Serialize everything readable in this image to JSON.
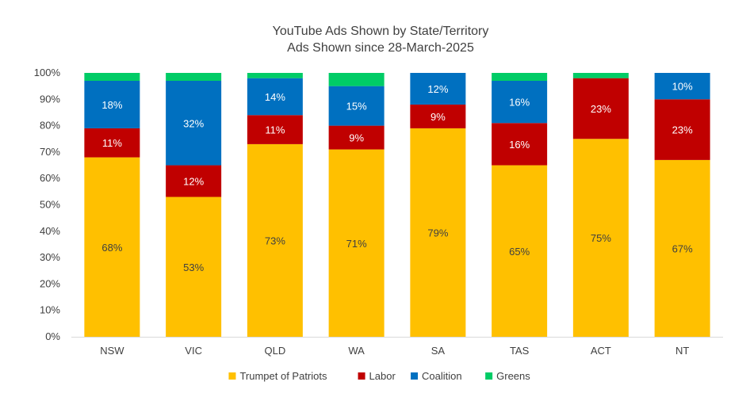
{
  "chart_data": {
    "type": "bar",
    "stacked": true,
    "title": "YouTube Ads Shown by State/Territory",
    "subtitle": "Ads Shown since 28-March-2025",
    "categories": [
      "NSW",
      "VIC",
      "QLD",
      "WA",
      "SA",
      "TAS",
      "ACT",
      "NT"
    ],
    "series": [
      {
        "name": "Trumpet of Patriots",
        "color": "#FFC000",
        "values": [
          68,
          53,
          73,
          71,
          79,
          65,
          75,
          67
        ],
        "labels": [
          "68%",
          "53%",
          "73%",
          "71%",
          "79%",
          "65%",
          "75%",
          "67%"
        ]
      },
      {
        "name": "Labor",
        "color": "#C00000",
        "values": [
          11,
          12,
          11,
          9,
          9,
          16,
          23,
          23
        ],
        "labels": [
          "11%",
          "12%",
          "11%",
          "9%",
          "9%",
          "16%",
          "23%",
          "23%"
        ]
      },
      {
        "name": "Coalition",
        "color": "#0070C0",
        "values": [
          18,
          32,
          14,
          15,
          12,
          16,
          0,
          10
        ],
        "labels": [
          "18%",
          "32%",
          "14%",
          "15%",
          "12%",
          "16%",
          "",
          "10%"
        ]
      },
      {
        "name": "Greens",
        "color": "#00CC66",
        "values": [
          3,
          3,
          2,
          5,
          0,
          3,
          2,
          0
        ],
        "labels": [
          "",
          "",
          "",
          "",
          "",
          "",
          "",
          ""
        ]
      }
    ],
    "ylim": [
      0,
      100
    ],
    "yticks": [
      "0%",
      "10%",
      "20%",
      "30%",
      "40%",
      "50%",
      "60%",
      "70%",
      "80%",
      "90%",
      "100%"
    ],
    "grid": false,
    "legend_position": "bottom"
  }
}
